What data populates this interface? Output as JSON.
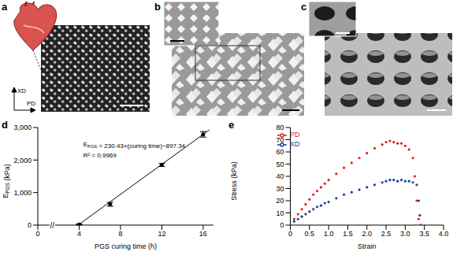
{
  "panels": [
    {
      "label": "a",
      "annotations": [
        "XD",
        "PD"
      ]
    },
    {
      "label": "b"
    },
    {
      "label": "c"
    }
  ],
  "chart_data": [
    {
      "type": "scatter",
      "title": "d",
      "xlabel": "PGS curing time (h)",
      "ylabel": [
        "E",
        {
          "sub": "PGS"
        },
        " (kPa)"
      ],
      "x": [
        4,
        7,
        12,
        16
      ],
      "values": [
        20,
        640,
        1850,
        2790
      ],
      "errors": [
        15,
        60,
        45,
        85
      ],
      "color": "#000000",
      "marker": "circle",
      "fit": {
        "x": [
          3.9,
          16.6
        ],
        "values": [
          1,
          2928
        ]
      },
      "annotations": [
        {
          "text": [
            "E",
            {
              "sub": "PGS"
            },
            " = 230.43×(curing time)−897.34"
          ],
          "x": 4.4,
          "y": 2520
        },
        {
          "text": [
            "R² = 0.9969"
          ],
          "x": 4.4,
          "y": 2180
        },
        {
          "text": [
            "//"
          ],
          "x": 1.4,
          "y": 0
        }
      ],
      "xlim": [
        0,
        17
      ],
      "xticks": [
        0,
        4,
        8,
        12,
        16
      ],
      "ylim": [
        0,
        3000
      ],
      "yticks": [
        0,
        {
          "value": 1000,
          "label": "1,000"
        },
        {
          "value": 2000,
          "label": "2,000"
        },
        {
          "value": 3000,
          "label": "3,000"
        }
      ],
      "grid": false
    },
    {
      "type": "scatter",
      "title": "e",
      "xlabel": "Strain",
      "ylabel": [
        "Stress (kPa)"
      ],
      "legend": "top-left",
      "marker": "circle",
      "series": [
        {
          "name": "PD",
          "color": "#e3211c",
          "x": [
            0,
            0.1,
            0.2,
            0.3,
            0.4,
            0.5,
            0.6,
            0.7,
            0.8,
            0.9,
            1.0,
            1.2,
            1.4,
            1.6,
            1.8,
            2.0,
            2.2,
            2.4,
            2.5,
            2.6,
            2.7,
            2.8,
            2.9,
            3.0,
            3.1,
            3.2,
            3.25,
            3.3,
            3.35,
            3.4
          ],
          "values": [
            0,
            5,
            9,
            13,
            17,
            21,
            25,
            28,
            31,
            34,
            37,
            42,
            47,
            51,
            55,
            59,
            63,
            66,
            68,
            69,
            68,
            67,
            67,
            65,
            62,
            55,
            40,
            20,
            5,
            0
          ]
        },
        {
          "name": "XD",
          "color": "#1f3f9a",
          "x": [
            0,
            0.1,
            0.2,
            0.3,
            0.4,
            0.5,
            0.6,
            0.7,
            0.8,
            0.9,
            1.0,
            1.2,
            1.4,
            1.6,
            1.8,
            2.0,
            2.2,
            2.4,
            2.5,
            2.6,
            2.7,
            2.8,
            2.9,
            3.0,
            3.1,
            3.2,
            3.3,
            3.35,
            3.38,
            3.4
          ],
          "values": [
            0,
            3,
            5,
            7,
            9,
            11,
            13,
            15,
            16,
            18,
            19,
            22,
            25,
            27,
            29,
            31,
            33,
            35,
            36,
            37,
            37,
            36,
            37,
            36,
            36,
            35,
            33,
            20,
            8,
            0
          ]
        }
      ],
      "xlim": [
        0,
        4
      ],
      "xticks": [
        0,
        0.5,
        {
          "value": 1,
          "label": "1.0"
        },
        1.5,
        {
          "value": 2,
          "label": "2.0"
        },
        2.5,
        {
          "value": 3,
          "label": "3.0"
        },
        3.5,
        {
          "value": 4,
          "label": "4.0"
        }
      ],
      "ylim": [
        0,
        80
      ],
      "yticks": [
        0,
        10,
        20,
        30,
        40,
        50,
        60,
        70,
        80
      ],
      "grid": false
    }
  ]
}
